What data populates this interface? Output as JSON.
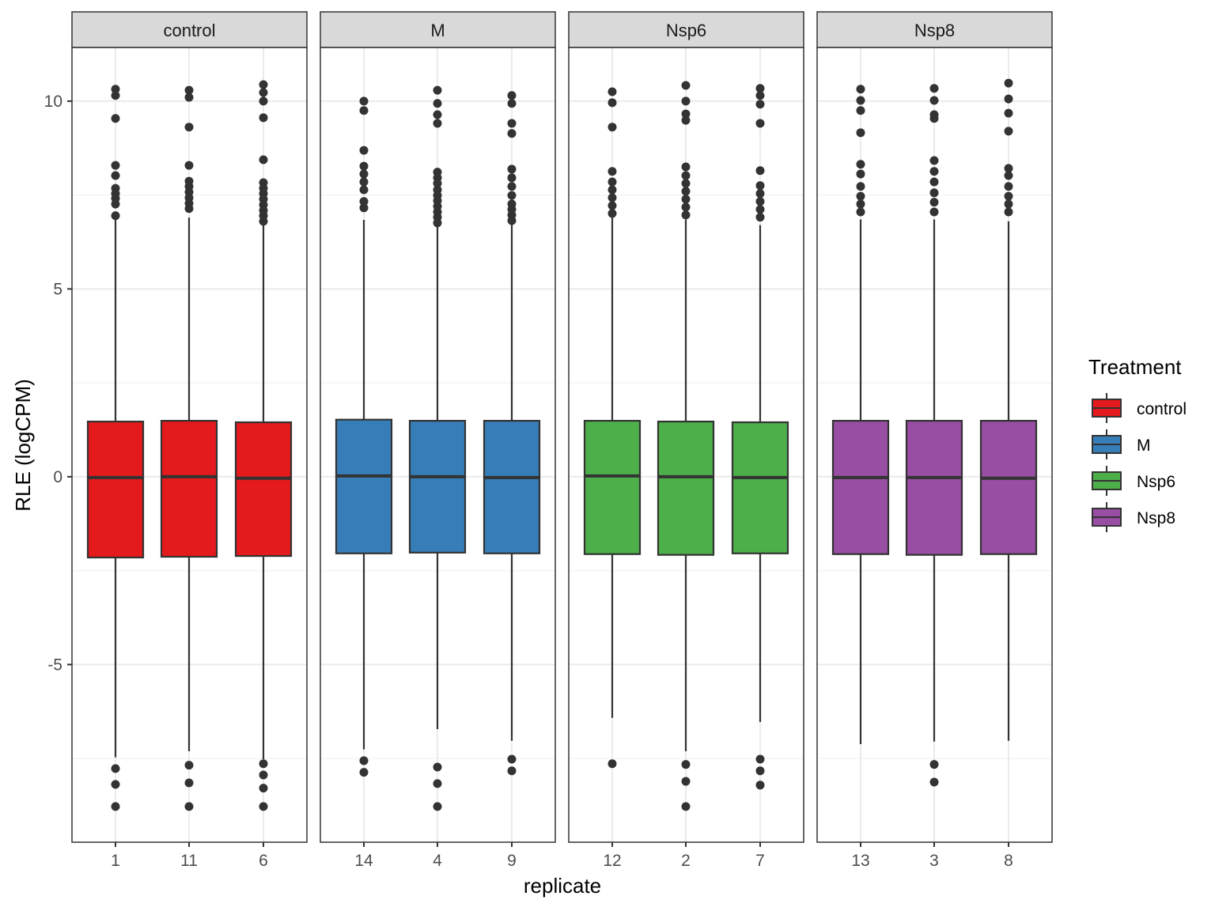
{
  "chart_data": {
    "type": "boxplot",
    "title": "",
    "xlabel": "replicate",
    "ylabel": "RLE (logCPM)",
    "ylim": [
      -9.73,
      11.43
    ],
    "yticks": [
      -5,
      0,
      5,
      10
    ],
    "yticklabels": [
      "-5",
      "0",
      "5",
      "10"
    ],
    "grid": true,
    "legend": {
      "title": "Treatment",
      "position": "right",
      "entries": [
        {
          "label": "control",
          "color": "#E41A1C"
        },
        {
          "label": "M",
          "color": "#377EB8"
        },
        {
          "label": "Nsp6",
          "color": "#4DAF4A"
        },
        {
          "label": "Nsp8",
          "color": "#984EA3"
        }
      ]
    },
    "facets": [
      {
        "label": "control",
        "color": "#E41A1C",
        "boxes": [
          {
            "x": "1",
            "q1": -2.15,
            "median": -0.02,
            "q3": 1.47,
            "lower": -7.47,
            "upper": 6.85,
            "outliers": [
              10.32,
              10.15,
              9.54,
              8.29,
              8.02,
              7.68,
              7.54,
              7.41,
              7.26,
              6.95,
              -7.77,
              -8.19,
              -8.78
            ]
          },
          {
            "x": "11",
            "q1": -2.13,
            "median": 0,
            "q3": 1.49,
            "lower": -7.31,
            "upper": 6.9,
            "outliers": [
              10.29,
              10.1,
              9.31,
              8.29,
              7.87,
              7.73,
              7.58,
              7.43,
              7.28,
              7.14,
              -7.68,
              -8.15,
              -8.78
            ]
          },
          {
            "x": "6",
            "q1": -2.11,
            "median": -0.04,
            "q3": 1.45,
            "lower": -7.52,
            "upper": 6.7,
            "outliers": [
              10.44,
              10.23,
              10.0,
              9.56,
              8.44,
              7.83,
              7.68,
              7.54,
              7.39,
              7.24,
              7.09,
              6.95,
              6.8,
              -7.64,
              -7.94,
              -8.29,
              -8.78
            ]
          }
        ]
      },
      {
        "label": "M",
        "color": "#377EB8",
        "boxes": [
          {
            "x": "14",
            "q1": -2.04,
            "median": 0.02,
            "q3": 1.52,
            "lower": -7.26,
            "upper": 6.84,
            "outliers": [
              10.0,
              9.75,
              8.69,
              8.27,
              8.06,
              7.85,
              7.64,
              7.33,
              7.16,
              -7.56,
              -7.87
            ]
          },
          {
            "x": "4",
            "q1": -2.02,
            "median": 0,
            "q3": 1.49,
            "lower": -6.72,
            "upper": 6.74,
            "outliers": [
              10.29,
              9.94,
              9.64,
              9.41,
              8.11,
              7.96,
              7.81,
              7.64,
              7.49,
              7.35,
              7.2,
              7.05,
              6.91,
              6.76,
              -7.73,
              -8.17,
              -8.78
            ]
          },
          {
            "x": "9",
            "q1": -2.04,
            "median": -0.02,
            "q3": 1.49,
            "lower": -7.03,
            "upper": 6.74,
            "outliers": [
              10.15,
              9.94,
              9.41,
              9.14,
              8.19,
              7.96,
              7.73,
              7.49,
              7.26,
              7.12,
              6.97,
              6.82,
              -7.52,
              -7.83
            ]
          }
        ]
      },
      {
        "label": "Nsp6",
        "color": "#4DAF4A",
        "boxes": [
          {
            "x": "12",
            "q1": -2.06,
            "median": 0.02,
            "q3": 1.49,
            "lower": -6.42,
            "upper": 6.9,
            "outliers": [
              10.25,
              9.96,
              9.31,
              8.13,
              7.85,
              7.64,
              7.43,
              7.22,
              7.01,
              -7.64
            ]
          },
          {
            "x": "2",
            "q1": -2.08,
            "median": 0,
            "q3": 1.47,
            "lower": -7.31,
            "upper": 6.85,
            "outliers": [
              10.42,
              10.0,
              9.66,
              9.49,
              8.25,
              8.02,
              7.81,
              7.6,
              7.39,
              7.18,
              6.97,
              -7.66,
              -8.11,
              -8.78
            ]
          },
          {
            "x": "7",
            "q1": -2.04,
            "median": -0.02,
            "q3": 1.45,
            "lower": -6.53,
            "upper": 6.7,
            "outliers": [
              10.34,
              10.15,
              9.92,
              9.41,
              8.15,
              7.75,
              7.54,
              7.33,
              7.12,
              6.91,
              -7.52,
              -7.83,
              -8.21
            ]
          }
        ]
      },
      {
        "label": "Nsp8",
        "color": "#984EA3",
        "boxes": [
          {
            "x": "13",
            "q1": -2.06,
            "median": -0.02,
            "q3": 1.49,
            "lower": -7.12,
            "upper": 6.85,
            "outliers": [
              10.32,
              10.02,
              9.75,
              9.16,
              8.32,
              8.06,
              7.73,
              7.47,
              7.26,
              7.05
            ]
          },
          {
            "x": "3",
            "q1": -2.08,
            "median": -0.02,
            "q3": 1.49,
            "lower": -7.05,
            "upper": 6.85,
            "outliers": [
              10.34,
              10.02,
              9.64,
              9.54,
              8.42,
              8.13,
              7.85,
              7.56,
              7.31,
              7.05,
              -7.66,
              -8.13
            ]
          },
          {
            "x": "8",
            "q1": -2.06,
            "median": -0.04,
            "q3": 1.49,
            "lower": -7.03,
            "upper": 6.8,
            "outliers": [
              10.48,
              10.06,
              9.68,
              9.2,
              8.21,
              8.02,
              7.73,
              7.47,
              7.26,
              7.05
            ]
          }
        ]
      }
    ]
  }
}
